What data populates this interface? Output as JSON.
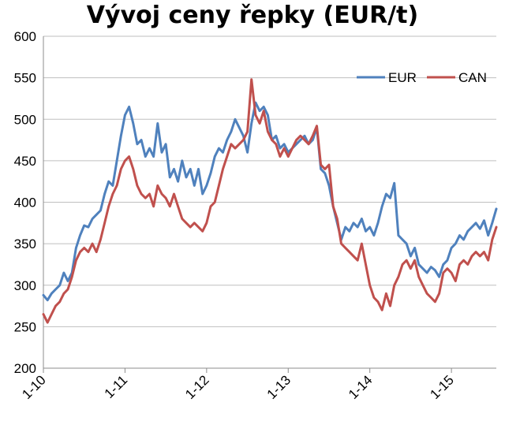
{
  "chart_data": {
    "type": "line",
    "title": "Vývoj ceny řepky (EUR/t)",
    "xlabel": "",
    "ylabel": "",
    "ylim": [
      200,
      600
    ],
    "yticks": [
      "200",
      "250",
      "300",
      "350",
      "400",
      "450",
      "500",
      "550",
      "600"
    ],
    "xlim": [
      2010.0,
      2015.55
    ],
    "xticks": [
      {
        "label": "1-10",
        "x": 2010
      },
      {
        "label": "1-11",
        "x": 2011
      },
      {
        "label": "1-12",
        "x": 2012
      },
      {
        "label": "1-13",
        "x": 2013
      },
      {
        "label": "1-14",
        "x": 2014
      },
      {
        "label": "1-15",
        "x": 2015
      }
    ],
    "grid": true,
    "legend_position": "top-right",
    "series": [
      {
        "name": "EUR",
        "color": "#4F81BD",
        "points": [
          [
            2010.0,
            288
          ],
          [
            2010.05,
            282
          ],
          [
            2010.1,
            290
          ],
          [
            2010.15,
            295
          ],
          [
            2010.2,
            300
          ],
          [
            2010.25,
            315
          ],
          [
            2010.3,
            305
          ],
          [
            2010.35,
            315
          ],
          [
            2010.4,
            345
          ],
          [
            2010.45,
            360
          ],
          [
            2010.5,
            372
          ],
          [
            2010.55,
            370
          ],
          [
            2010.6,
            380
          ],
          [
            2010.65,
            385
          ],
          [
            2010.7,
            390
          ],
          [
            2010.75,
            410
          ],
          [
            2010.8,
            425
          ],
          [
            2010.85,
            420
          ],
          [
            2010.9,
            450
          ],
          [
            2010.95,
            480
          ],
          [
            2011.0,
            505
          ],
          [
            2011.05,
            515
          ],
          [
            2011.1,
            495
          ],
          [
            2011.15,
            470
          ],
          [
            2011.2,
            475
          ],
          [
            2011.25,
            455
          ],
          [
            2011.3,
            465
          ],
          [
            2011.35,
            455
          ],
          [
            2011.4,
            495
          ],
          [
            2011.45,
            460
          ],
          [
            2011.5,
            470
          ],
          [
            2011.55,
            430
          ],
          [
            2011.6,
            440
          ],
          [
            2011.65,
            425
          ],
          [
            2011.7,
            450
          ],
          [
            2011.75,
            430
          ],
          [
            2011.8,
            440
          ],
          [
            2011.85,
            420
          ],
          [
            2011.9,
            440
          ],
          [
            2011.95,
            410
          ],
          [
            2012.0,
            420
          ],
          [
            2012.05,
            435
          ],
          [
            2012.1,
            455
          ],
          [
            2012.15,
            465
          ],
          [
            2012.2,
            460
          ],
          [
            2012.25,
            475
          ],
          [
            2012.3,
            485
          ],
          [
            2012.35,
            500
          ],
          [
            2012.4,
            490
          ],
          [
            2012.45,
            480
          ],
          [
            2012.5,
            460
          ],
          [
            2012.55,
            495
          ],
          [
            2012.6,
            520
          ],
          [
            2012.65,
            510
          ],
          [
            2012.7,
            515
          ],
          [
            2012.75,
            505
          ],
          [
            2012.8,
            475
          ],
          [
            2012.85,
            480
          ],
          [
            2012.9,
            465
          ],
          [
            2012.95,
            470
          ],
          [
            2013.0,
            460
          ],
          [
            2013.05,
            465
          ],
          [
            2013.1,
            470
          ],
          [
            2013.15,
            475
          ],
          [
            2013.2,
            480
          ],
          [
            2013.25,
            470
          ],
          [
            2013.3,
            475
          ],
          [
            2013.35,
            490
          ],
          [
            2013.4,
            440
          ],
          [
            2013.45,
            435
          ],
          [
            2013.5,
            420
          ],
          [
            2013.55,
            395
          ],
          [
            2013.6,
            375
          ],
          [
            2013.65,
            355
          ],
          [
            2013.7,
            370
          ],
          [
            2013.75,
            365
          ],
          [
            2013.8,
            375
          ],
          [
            2013.85,
            370
          ],
          [
            2013.9,
            380
          ],
          [
            2013.95,
            365
          ],
          [
            2014.0,
            370
          ],
          [
            2014.05,
            360
          ],
          [
            2014.1,
            375
          ],
          [
            2014.15,
            395
          ],
          [
            2014.2,
            410
          ],
          [
            2014.25,
            405
          ],
          [
            2014.3,
            423
          ],
          [
            2014.35,
            360
          ],
          [
            2014.4,
            355
          ],
          [
            2014.45,
            350
          ],
          [
            2014.5,
            335
          ],
          [
            2014.55,
            345
          ],
          [
            2014.6,
            325
          ],
          [
            2014.65,
            320
          ],
          [
            2014.7,
            315
          ],
          [
            2014.75,
            322
          ],
          [
            2014.8,
            318
          ],
          [
            2014.85,
            310
          ],
          [
            2014.9,
            325
          ],
          [
            2014.95,
            330
          ],
          [
            2015.0,
            345
          ],
          [
            2015.05,
            350
          ],
          [
            2015.1,
            360
          ],
          [
            2015.15,
            355
          ],
          [
            2015.2,
            365
          ],
          [
            2015.25,
            370
          ],
          [
            2015.3,
            375
          ],
          [
            2015.35,
            368
          ],
          [
            2015.4,
            378
          ],
          [
            2015.45,
            360
          ],
          [
            2015.5,
            375
          ],
          [
            2015.55,
            392
          ]
        ]
      },
      {
        "name": "CAN",
        "color": "#C0504D",
        "points": [
          [
            2010.0,
            265
          ],
          [
            2010.05,
            255
          ],
          [
            2010.1,
            265
          ],
          [
            2010.15,
            275
          ],
          [
            2010.2,
            280
          ],
          [
            2010.25,
            290
          ],
          [
            2010.3,
            295
          ],
          [
            2010.35,
            310
          ],
          [
            2010.4,
            330
          ],
          [
            2010.45,
            340
          ],
          [
            2010.5,
            345
          ],
          [
            2010.55,
            340
          ],
          [
            2010.6,
            350
          ],
          [
            2010.65,
            340
          ],
          [
            2010.7,
            355
          ],
          [
            2010.75,
            375
          ],
          [
            2010.8,
            395
          ],
          [
            2010.85,
            410
          ],
          [
            2010.9,
            420
          ],
          [
            2010.95,
            440
          ],
          [
            2011.0,
            450
          ],
          [
            2011.05,
            455
          ],
          [
            2011.1,
            440
          ],
          [
            2011.15,
            420
          ],
          [
            2011.2,
            410
          ],
          [
            2011.25,
            405
          ],
          [
            2011.3,
            410
          ],
          [
            2011.35,
            395
          ],
          [
            2011.4,
            420
          ],
          [
            2011.45,
            410
          ],
          [
            2011.5,
            405
          ],
          [
            2011.55,
            395
          ],
          [
            2011.6,
            410
          ],
          [
            2011.65,
            395
          ],
          [
            2011.7,
            380
          ],
          [
            2011.75,
            375
          ],
          [
            2011.8,
            370
          ],
          [
            2011.85,
            375
          ],
          [
            2011.9,
            370
          ],
          [
            2011.95,
            365
          ],
          [
            2012.0,
            375
          ],
          [
            2012.05,
            395
          ],
          [
            2012.1,
            400
          ],
          [
            2012.15,
            420
          ],
          [
            2012.2,
            440
          ],
          [
            2012.25,
            455
          ],
          [
            2012.3,
            470
          ],
          [
            2012.35,
            465
          ],
          [
            2012.4,
            470
          ],
          [
            2012.45,
            475
          ],
          [
            2012.5,
            485
          ],
          [
            2012.55,
            548
          ],
          [
            2012.6,
            505
          ],
          [
            2012.65,
            495
          ],
          [
            2012.7,
            510
          ],
          [
            2012.75,
            485
          ],
          [
            2012.8,
            475
          ],
          [
            2012.85,
            470
          ],
          [
            2012.9,
            455
          ],
          [
            2012.95,
            465
          ],
          [
            2013.0,
            455
          ],
          [
            2013.05,
            465
          ],
          [
            2013.1,
            475
          ],
          [
            2013.15,
            480
          ],
          [
            2013.2,
            475
          ],
          [
            2013.25,
            470
          ],
          [
            2013.3,
            480
          ],
          [
            2013.35,
            492
          ],
          [
            2013.4,
            445
          ],
          [
            2013.45,
            440
          ],
          [
            2013.5,
            445
          ],
          [
            2013.55,
            395
          ],
          [
            2013.6,
            380
          ],
          [
            2013.65,
            350
          ],
          [
            2013.7,
            345
          ],
          [
            2013.75,
            340
          ],
          [
            2013.8,
            335
          ],
          [
            2013.85,
            330
          ],
          [
            2013.9,
            350
          ],
          [
            2013.95,
            325
          ],
          [
            2014.0,
            300
          ],
          [
            2014.05,
            285
          ],
          [
            2014.1,
            280
          ],
          [
            2014.15,
            270
          ],
          [
            2014.2,
            290
          ],
          [
            2014.25,
            275
          ],
          [
            2014.3,
            300
          ],
          [
            2014.35,
            310
          ],
          [
            2014.4,
            325
          ],
          [
            2014.45,
            330
          ],
          [
            2014.5,
            320
          ],
          [
            2014.55,
            330
          ],
          [
            2014.6,
            310
          ],
          [
            2014.65,
            300
          ],
          [
            2014.7,
            290
          ],
          [
            2014.75,
            285
          ],
          [
            2014.8,
            280
          ],
          [
            2014.85,
            290
          ],
          [
            2014.9,
            315
          ],
          [
            2014.95,
            320
          ],
          [
            2015.0,
            315
          ],
          [
            2015.05,
            305
          ],
          [
            2015.1,
            325
          ],
          [
            2015.15,
            330
          ],
          [
            2015.2,
            325
          ],
          [
            2015.25,
            335
          ],
          [
            2015.3,
            340
          ],
          [
            2015.35,
            335
          ],
          [
            2015.4,
            340
          ],
          [
            2015.45,
            330
          ],
          [
            2015.5,
            355
          ],
          [
            2015.55,
            370
          ]
        ]
      }
    ]
  }
}
